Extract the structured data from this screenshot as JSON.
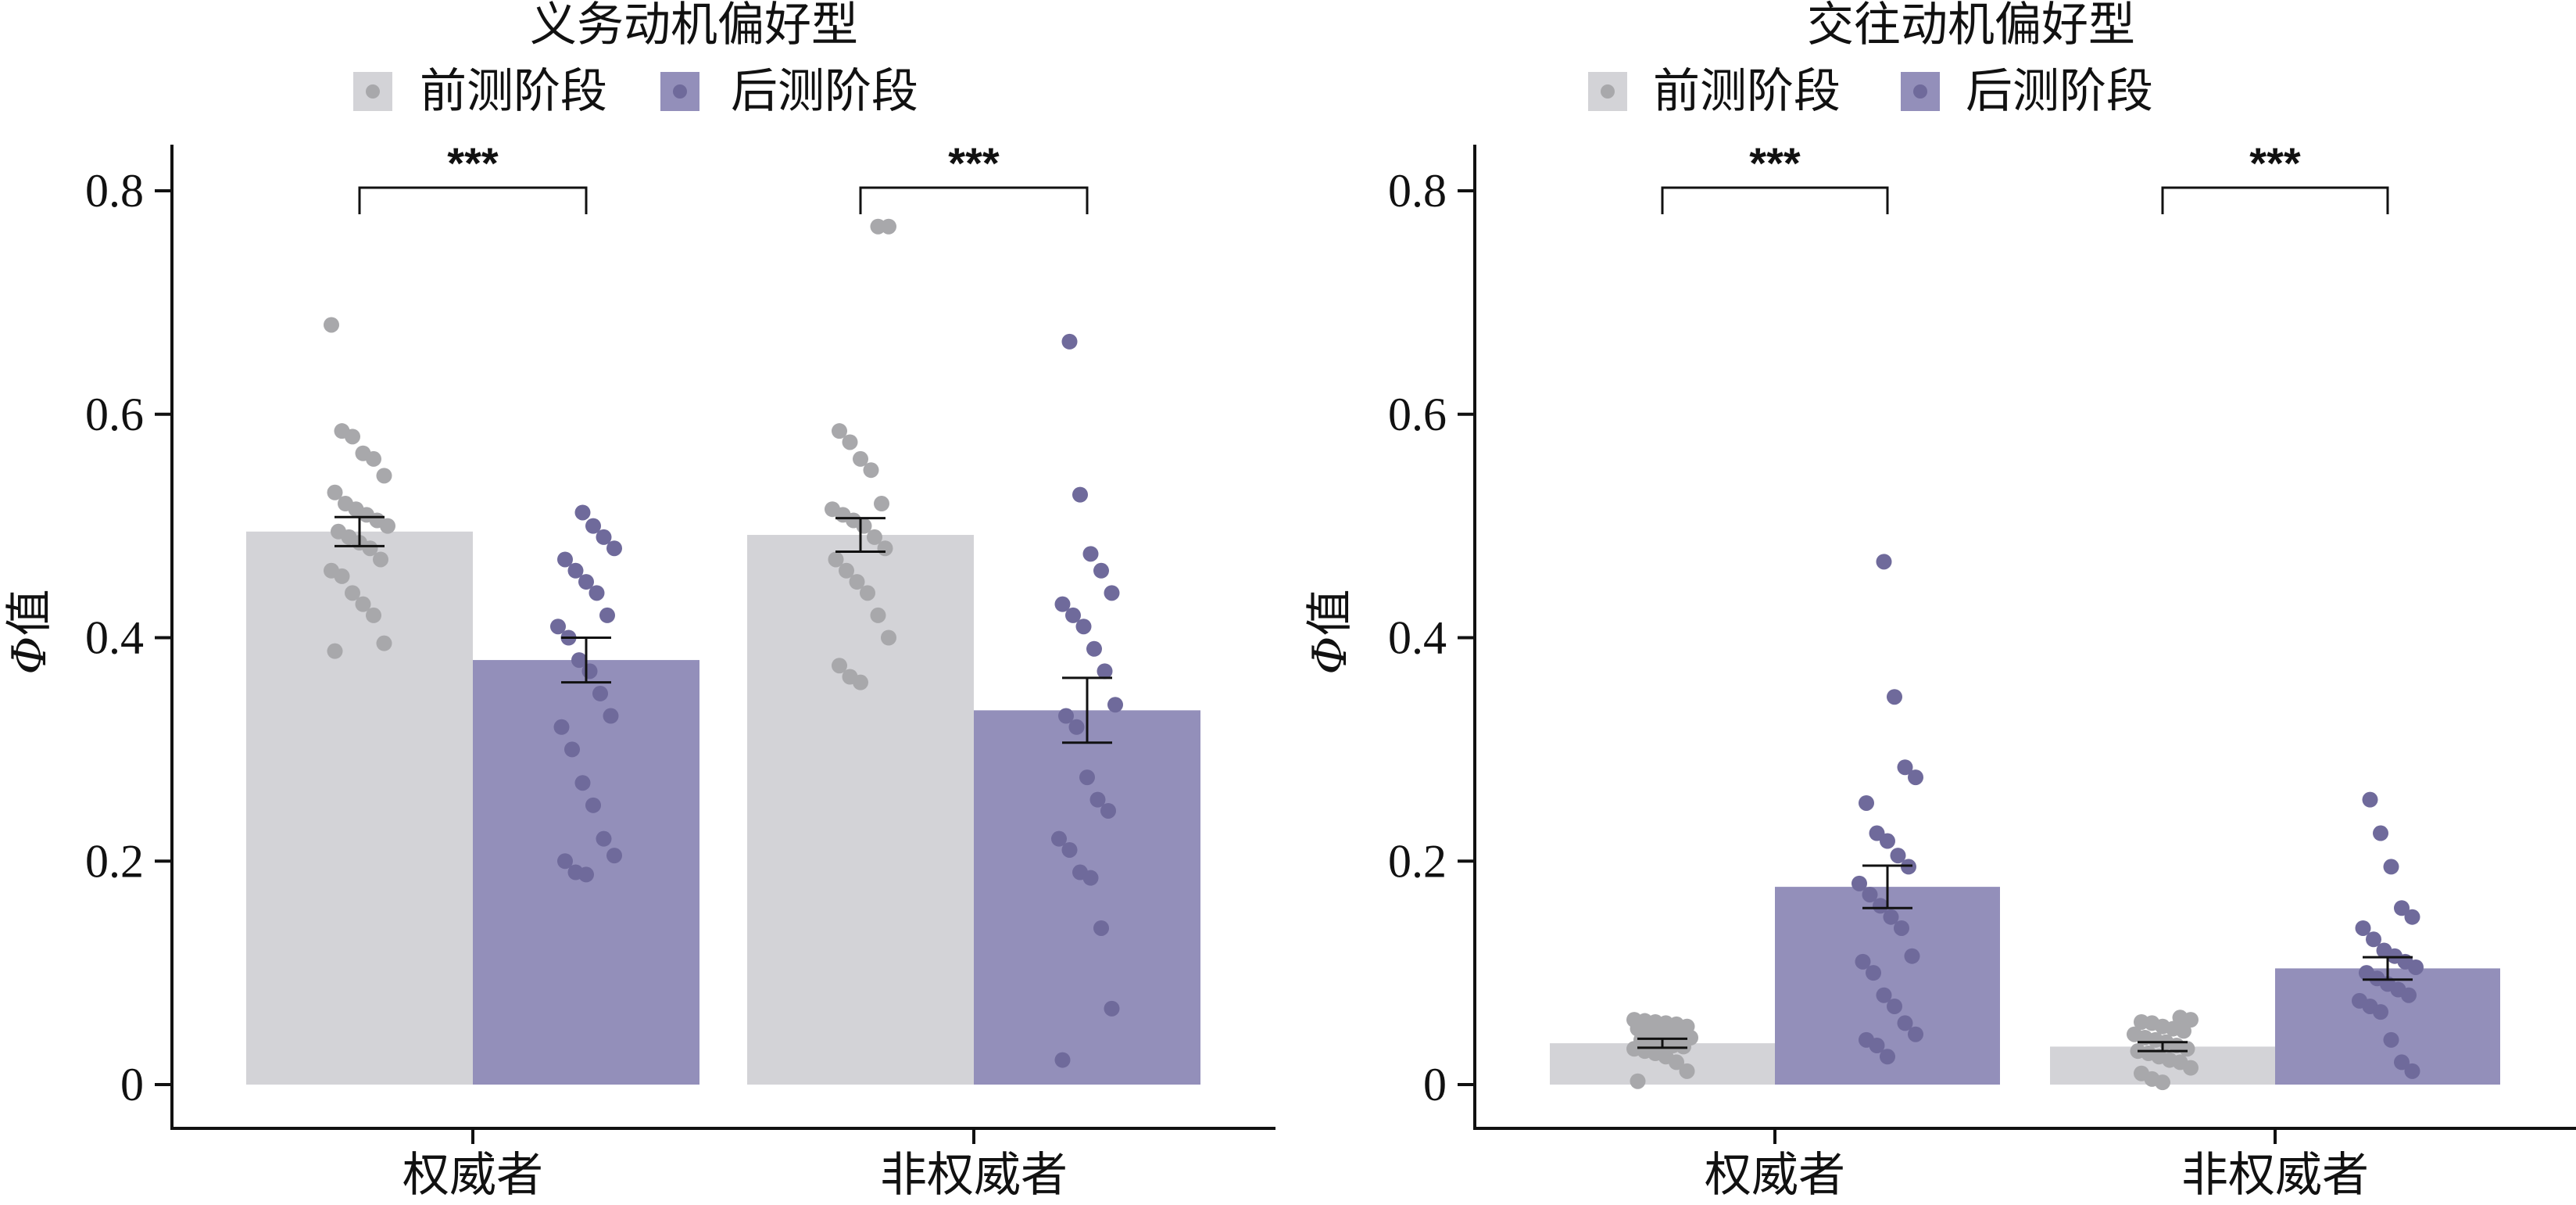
{
  "colors": {
    "pre": "#d3d3d7",
    "post": "#938fba",
    "pre_point": "#a8a8ab",
    "post_point": "#6f6a9b",
    "axis": "#111111"
  },
  "chart_data": [
    {
      "type": "bar",
      "title": "义务动机偏好型",
      "ylabel_symbol": "Φ",
      "ylabel_suffix": "值",
      "ylim": [
        0,
        0.8
      ],
      "yticks": [
        {
          "value": 0,
          "label": "0"
        },
        {
          "value": 0.2,
          "label": "0.2"
        },
        {
          "value": 0.4,
          "label": "0.4"
        },
        {
          "value": 0.6,
          "label": "0.6"
        },
        {
          "value": 0.8,
          "label": "0.8"
        }
      ],
      "categories": [
        "权威者",
        "非权威者"
      ],
      "legend": [
        "前测阶段",
        "后测阶段"
      ],
      "series": [
        {
          "name": "前测阶段",
          "values": [
            0.495,
            0.492
          ],
          "errors": [
            0.013,
            0.015
          ],
          "points": [
            [
              0.68,
              0.585,
              0.58,
              0.565,
              0.56,
              0.545,
              0.53,
              0.52,
              0.515,
              0.51,
              0.505,
              0.5,
              0.495,
              0.49,
              0.485,
              0.48,
              0.47,
              0.46,
              0.455,
              0.44,
              0.43,
              0.42,
              0.395,
              0.388
            ],
            [
              0.768,
              0.768,
              0.585,
              0.575,
              0.56,
              0.55,
              0.52,
              0.515,
              0.51,
              0.505,
              0.5,
              0.49,
              0.48,
              0.47,
              0.46,
              0.45,
              0.44,
              0.42,
              0.4,
              0.375,
              0.365,
              0.36
            ]
          ]
        },
        {
          "name": "后测阶段",
          "values": [
            0.38,
            0.335
          ],
          "errors": [
            0.02,
            0.029
          ],
          "points": [
            [
              0.512,
              0.5,
              0.49,
              0.48,
              0.47,
              0.46,
              0.45,
              0.44,
              0.42,
              0.41,
              0.4,
              0.38,
              0.37,
              0.35,
              0.33,
              0.32,
              0.3,
              0.27,
              0.25,
              0.22,
              0.205,
              0.2,
              0.19,
              0.188
            ],
            [
              0.665,
              0.528,
              0.475,
              0.46,
              0.44,
              0.43,
              0.42,
              0.41,
              0.39,
              0.37,
              0.34,
              0.33,
              0.32,
              0.275,
              0.255,
              0.245,
              0.22,
              0.21,
              0.19,
              0.185,
              0.14,
              0.068,
              0.022
            ]
          ]
        }
      ],
      "significance": [
        {
          "category_index": 0,
          "label": "***"
        },
        {
          "category_index": 1,
          "label": "***"
        }
      ]
    },
    {
      "type": "bar",
      "title": "交往动机偏好型",
      "ylabel_symbol": "Φ",
      "ylabel_suffix": "值",
      "ylim": [
        0,
        0.8
      ],
      "yticks": [
        {
          "value": 0,
          "label": "0"
        },
        {
          "value": 0.2,
          "label": "0.2"
        },
        {
          "value": 0.4,
          "label": "0.4"
        },
        {
          "value": 0.6,
          "label": "0.6"
        },
        {
          "value": 0.8,
          "label": "0.8"
        }
      ],
      "categories": [
        "权威者",
        "非权威者"
      ],
      "legend": [
        "前测阶段",
        "后测阶段"
      ],
      "series": [
        {
          "name": "前测阶段",
          "values": [
            0.037,
            0.034
          ],
          "errors": [
            0.004,
            0.004
          ],
          "points": [
            [
              0.058,
              0.057,
              0.056,
              0.055,
              0.054,
              0.052,
              0.05,
              0.048,
              0.046,
              0.045,
              0.044,
              0.042,
              0.04,
              0.038,
              0.036,
              0.035,
              0.034,
              0.032,
              0.03,
              0.028,
              0.025,
              0.02,
              0.012,
              0.003
            ],
            [
              0.06,
              0.058,
              0.056,
              0.055,
              0.052,
              0.05,
              0.048,
              0.045,
              0.042,
              0.04,
              0.038,
              0.035,
              0.032,
              0.03,
              0.028,
              0.025,
              0.022,
              0.02,
              0.015,
              0.01,
              0.005,
              0.002
            ]
          ]
        },
        {
          "name": "后测阶段",
          "values": [
            0.177,
            0.104
          ],
          "errors": [
            0.019,
            0.01
          ],
          "points": [
            [
              0.468,
              0.347,
              0.284,
              0.275,
              0.252,
              0.225,
              0.218,
              0.205,
              0.195,
              0.18,
              0.17,
              0.16,
              0.15,
              0.14,
              0.115,
              0.11,
              0.1,
              0.08,
              0.07,
              0.055,
              0.045,
              0.04,
              0.035,
              0.025
            ],
            [
              0.255,
              0.225,
              0.195,
              0.158,
              0.15,
              0.14,
              0.13,
              0.12,
              0.115,
              0.11,
              0.105,
              0.1,
              0.095,
              0.09,
              0.085,
              0.08,
              0.075,
              0.07,
              0.065,
              0.04,
              0.02,
              0.012
            ]
          ]
        }
      ],
      "significance": [
        {
          "category_index": 0,
          "label": "***"
        },
        {
          "category_index": 1,
          "label": "***"
        }
      ]
    }
  ]
}
